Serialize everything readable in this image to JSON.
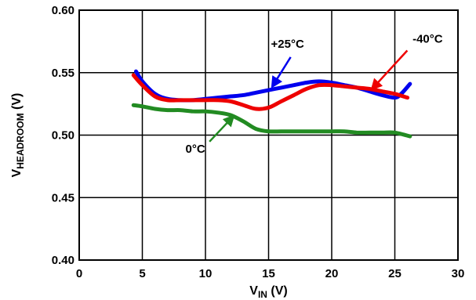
{
  "chart_data": {
    "type": "line",
    "title": "",
    "xlabel": {
      "main": "V",
      "sub": "IN",
      "suffix": " (V)"
    },
    "ylabel": {
      "main": "V",
      "sub": "HEADROOM",
      "suffix": " (V)"
    },
    "xlim": [
      0,
      30
    ],
    "ylim": [
      0.4,
      0.6
    ],
    "xticks": [
      0,
      5,
      10,
      15,
      20,
      25,
      30
    ],
    "yticks": [
      0.4,
      0.45,
      0.5,
      0.55,
      0.6
    ],
    "xtick_labels": [
      "0",
      "5",
      "10",
      "15",
      "20",
      "25",
      "30"
    ],
    "ytick_labels": [
      "0.40",
      "0.45",
      "0.50",
      "0.55",
      "0.60"
    ],
    "grid": true,
    "series": [
      {
        "name": "+25°C",
        "color": "#0000ee",
        "x": [
          4.5,
          5,
          6,
          7,
          8,
          9,
          10,
          11,
          12,
          13,
          14,
          15,
          16,
          17,
          18,
          19,
          20,
          21,
          22,
          23,
          24,
          25,
          25.5,
          26.2
        ],
        "y": [
          0.551,
          0.543,
          0.533,
          0.529,
          0.528,
          0.528,
          0.529,
          0.53,
          0.531,
          0.532,
          0.534,
          0.536,
          0.538,
          0.54,
          0.542,
          0.543,
          0.542,
          0.54,
          0.538,
          0.535,
          0.532,
          0.53,
          0.533,
          0.541
        ]
      },
      {
        "name": "-40°C",
        "color": "#ee0000",
        "x": [
          4.3,
          5,
          6,
          7,
          8,
          9,
          10,
          11,
          12,
          13,
          14,
          15,
          16,
          17,
          18,
          19,
          20,
          21,
          22,
          23,
          24,
          25,
          26
        ],
        "y": [
          0.548,
          0.54,
          0.531,
          0.528,
          0.528,
          0.528,
          0.528,
          0.528,
          0.527,
          0.524,
          0.521,
          0.522,
          0.527,
          0.532,
          0.537,
          0.54,
          0.54,
          0.539,
          0.538,
          0.537,
          0.535,
          0.533,
          0.53
        ]
      },
      {
        "name": "0°C",
        "color": "#228b22",
        "x": [
          4.3,
          5,
          6,
          7,
          8,
          9,
          10,
          11,
          12,
          13,
          14,
          15,
          16,
          17,
          18,
          19,
          20,
          21,
          22,
          23,
          24,
          25,
          26.2
        ],
        "y": [
          0.524,
          0.523,
          0.521,
          0.52,
          0.52,
          0.519,
          0.519,
          0.518,
          0.516,
          0.511,
          0.505,
          0.503,
          0.503,
          0.503,
          0.503,
          0.503,
          0.503,
          0.503,
          0.502,
          0.502,
          0.502,
          0.502,
          0.499
        ]
      }
    ],
    "annotations": [
      {
        "text": "+25°C",
        "color": "#000000",
        "label_at": [
          16.5,
          0.57
        ],
        "arrow_to": [
          15.3,
          0.539
        ]
      },
      {
        "text": "-40°C",
        "color": "#000000",
        "label_at": [
          27.6,
          0.574
        ],
        "arrow_to": [
          23.2,
          0.537
        ]
      },
      {
        "text": "0°C",
        "color": "#000000",
        "label_at": [
          9.2,
          0.486
        ],
        "arrow_to": [
          12.2,
          0.515
        ]
      }
    ]
  }
}
